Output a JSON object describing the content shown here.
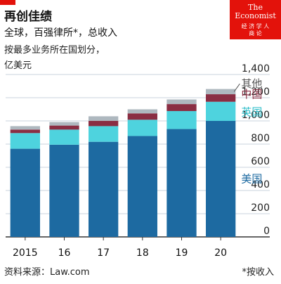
{
  "header": {
    "title": "再创佳绩",
    "subtitle": "全球，百强律所*，总收入",
    "note_line1": "按最多业务所在国划分，",
    "note_line2": "亿美元"
  },
  "logo": {
    "line1": "The",
    "line2": "Economist",
    "line3": "经 济 学 人",
    "line4": "商 论"
  },
  "footer": {
    "source": "资料来源：Law.com",
    "footnote": "*按收入"
  },
  "colors": {
    "us": "#1d6aa1",
    "uk": "#4ed3de",
    "china": "#8a2e43",
    "other": "#aeb8bf",
    "label_other": "#555555",
    "label_china": "#8a2e43",
    "label_uk": "#2cbdc9",
    "label_us": "#1d6aa1"
  },
  "chart_data": {
    "type": "bar",
    "stacked": true,
    "categories": [
      "2015",
      "16",
      "17",
      "18",
      "19",
      "20"
    ],
    "series": [
      {
        "name": "美国",
        "values": [
          760,
          795,
          820,
          870,
          930,
          1000
        ]
      },
      {
        "name": "英国",
        "values": [
          135,
          130,
          135,
          140,
          155,
          165
        ]
      },
      {
        "name": "中国",
        "values": [
          30,
          35,
          45,
          55,
          60,
          65
        ]
      },
      {
        "name": "其他",
        "values": [
          30,
          30,
          40,
          35,
          40,
          45
        ]
      }
    ],
    "ylim": [
      0,
      1400
    ],
    "yticks": [
      0,
      200,
      400,
      600,
      800,
      1000,
      1200,
      1400
    ],
    "ytick_labels": [
      "0",
      "200",
      "400",
      "600",
      "800",
      "1,000",
      "1,200",
      "1,400"
    ],
    "grid": true
  }
}
